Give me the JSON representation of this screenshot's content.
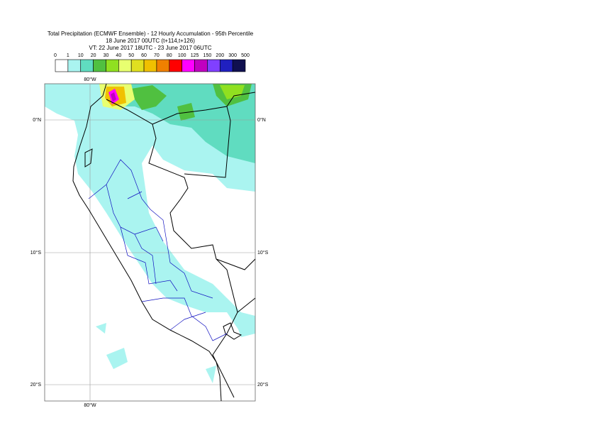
{
  "header": {
    "title": "Total Precipitation (ECMWF Ensemble) - 12 Hourly Accumulation - 95th Percentile",
    "base_time": "18 June 2017 00UTC (t+114,t+126)",
    "valid_time": "VT: 22 June 2017 18UTC - 23 June 2017 06UTC"
  },
  "legend": {
    "levels": [
      "0",
      "1",
      "10",
      "20",
      "30",
      "40",
      "50",
      "60",
      "70",
      "80",
      "100",
      "125",
      "150",
      "200",
      "300",
      "500"
    ],
    "colors": [
      "#ffffff",
      "#aaf4f0",
      "#60dcc0",
      "#50c040",
      "#90e020",
      "#e8ff70",
      "#e0e020",
      "#f0c000",
      "#f08000",
      "#ff0000",
      "#ff00ff",
      "#c000c0",
      "#8040ff",
      "#2020c0",
      "#101050"
    ]
  },
  "map": {
    "lon_labels": {
      "top": "80°W",
      "bottom": "80°W"
    },
    "lat_labels": {
      "left": [
        "0°N",
        "10°S",
        "20°S"
      ],
      "right": [
        "0°N",
        "10°S",
        "20°S"
      ]
    }
  }
}
